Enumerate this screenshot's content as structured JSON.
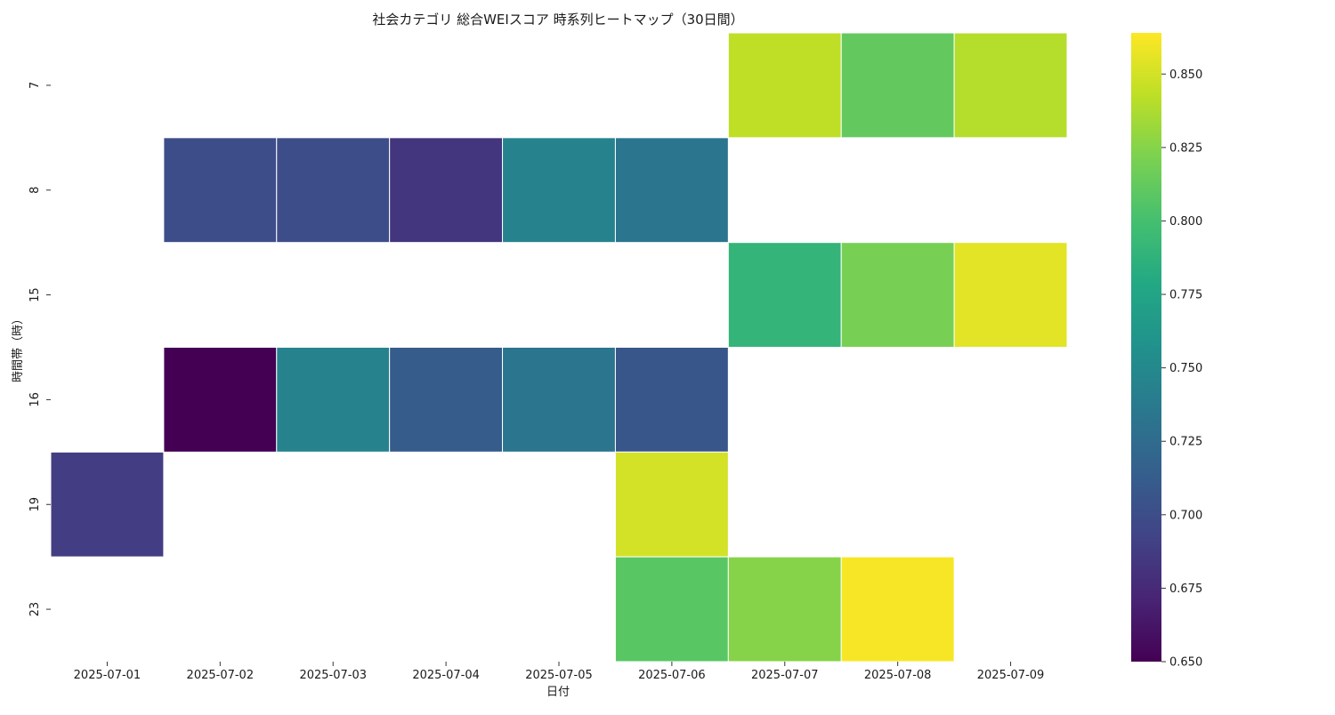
{
  "chart_data": {
    "type": "heatmap",
    "title": "社会カテゴリ 総合WEIスコア 時系列ヒートマップ（30日間）",
    "xlabel": "日付",
    "ylabel": "時間帯（時）",
    "x": [
      "2025-07-01",
      "2025-07-02",
      "2025-07-03",
      "2025-07-04",
      "2025-07-05",
      "2025-07-06",
      "2025-07-07",
      "2025-07-08",
      "2025-07-09"
    ],
    "y": [
      "7",
      "8",
      "15",
      "16",
      "19",
      "23"
    ],
    "values": [
      [
        null,
        null,
        null,
        null,
        null,
        null,
        0.843,
        0.812,
        0.84
      ],
      [
        null,
        0.7,
        0.7,
        0.683,
        0.745,
        0.733,
        null,
        null,
        null
      ],
      [
        null,
        null,
        null,
        null,
        null,
        null,
        0.79,
        0.82,
        0.855
      ],
      [
        null,
        0.65,
        0.745,
        0.712,
        0.733,
        0.707,
        null,
        null,
        null
      ],
      [
        0.688,
        null,
        null,
        null,
        null,
        0.85,
        null,
        null,
        null
      ],
      [
        null,
        null,
        null,
        null,
        null,
        0.808,
        0.825,
        0.862,
        null
      ]
    ],
    "colormap": "viridis",
    "colorbar": {
      "min": 0.65,
      "max": 0.864,
      "ticks": [
        "0.650",
        "0.675",
        "0.700",
        "0.725",
        "0.750",
        "0.775",
        "0.800",
        "0.825",
        "0.850"
      ]
    },
    "grid": false,
    "cell_border_color": "#ffffff"
  }
}
